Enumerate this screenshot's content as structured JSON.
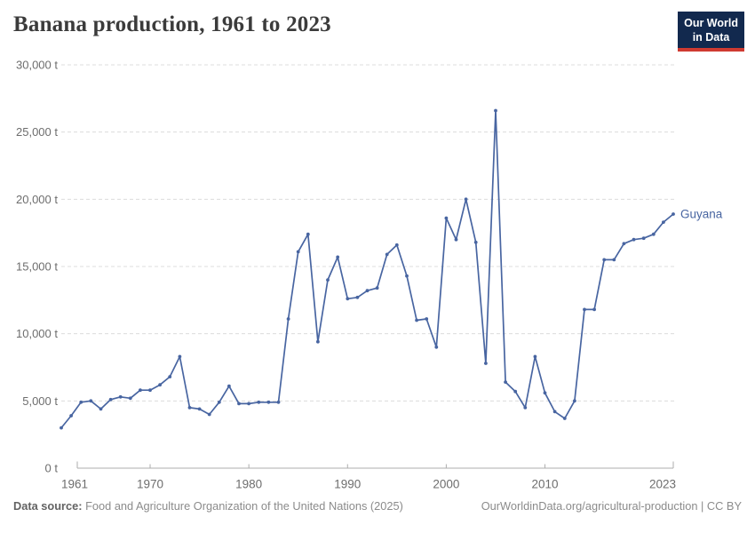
{
  "chart_data": {
    "type": "line",
    "title": "Banana production, 1961 to 2023",
    "unit": "t",
    "ytick_suffix": " t",
    "x": [
      1961,
      1962,
      1963,
      1964,
      1965,
      1966,
      1967,
      1968,
      1969,
      1970,
      1971,
      1972,
      1973,
      1974,
      1975,
      1976,
      1977,
      1978,
      1979,
      1980,
      1981,
      1982,
      1983,
      1984,
      1985,
      1986,
      1987,
      1988,
      1989,
      1990,
      1991,
      1992,
      1993,
      1994,
      1995,
      1996,
      1997,
      1998,
      1999,
      2000,
      2001,
      2002,
      2003,
      2004,
      2005,
      2006,
      2007,
      2008,
      2009,
      2010,
      2011,
      2012,
      2013,
      2014,
      2015,
      2016,
      2017,
      2018,
      2019,
      2020,
      2021,
      2022,
      2023
    ],
    "series": [
      {
        "name": "Guyana",
        "color": "#4865a1",
        "values": [
          3000,
          3900,
          4900,
          5000,
          4400,
          5100,
          5300,
          5200,
          5800,
          5800,
          6200,
          6800,
          8300,
          4500,
          4400,
          4000,
          4900,
          6100,
          4800,
          4800,
          4900,
          4900,
          4900,
          11100,
          16100,
          17400,
          9400,
          14000,
          15700,
          12600,
          12700,
          13200,
          13400,
          15900,
          16600,
          14300,
          11000,
          11100,
          9000,
          18600,
          17000,
          20000,
          16800,
          7800,
          26600,
          6400,
          5700,
          4500,
          8300,
          5600,
          4200,
          3700,
          5000,
          11800,
          11800,
          15500,
          15500,
          16700,
          17000,
          17100,
          17400,
          18300,
          18900
        ]
      }
    ],
    "ylim": [
      0,
      30000
    ],
    "yticks": [
      0,
      5000,
      10000,
      15000,
      20000,
      25000,
      30000
    ],
    "xticks": [
      1961,
      1970,
      1980,
      1990,
      2000,
      2010,
      2023
    ],
    "grid": "horizontal-dashed",
    "legend_position": "line-end-label"
  },
  "header": {
    "logo": {
      "line1": "Our World",
      "line2": "in Data"
    }
  },
  "footer": {
    "source_label": "Data source:",
    "source_text": "Food and Agriculture Organization of the United Nations (2025)",
    "link_text": "OurWorldinData.org/agricultural-production | CC BY"
  },
  "colors": {
    "line": "#4865a1",
    "logo_bg": "#12294e",
    "logo_accent": "#cf3a31",
    "gridline": "#dcdcdc",
    "axis": "#adadad",
    "tick_label": "#6d6d6d",
    "title_text": "#3b3b3b"
  }
}
